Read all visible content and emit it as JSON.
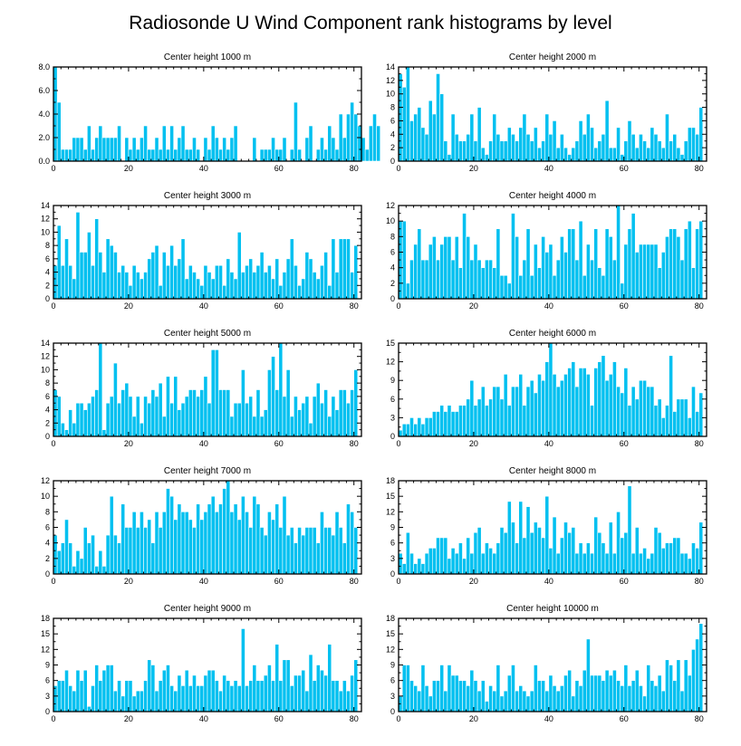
{
  "figure": {
    "title": "Radiosonde U Wind Component rank histograms by level",
    "bar_color": "#00c0f0"
  },
  "chart_data": [
    {
      "type": "bar",
      "title": "Center height 1000 m",
      "xlim": [
        0,
        82
      ],
      "ylim": [
        0,
        8
      ],
      "xticks": [
        0,
        20,
        40,
        60,
        80
      ],
      "yticks": [
        0,
        2,
        4,
        6,
        8
      ],
      "ytick_labels": [
        "0.0",
        "2.0",
        "4.0",
        "6.0",
        "8.0"
      ],
      "values": [
        8,
        5,
        1,
        1,
        1,
        2,
        2,
        2,
        1,
        3,
        1,
        2,
        3,
        2,
        2,
        2,
        2,
        3,
        0,
        2,
        1,
        2,
        1,
        2,
        3,
        1,
        1,
        2,
        1,
        3,
        1,
        3,
        1,
        2,
        3,
        1,
        1,
        2,
        1,
        0,
        2,
        1,
        3,
        2,
        1,
        2,
        1,
        2,
        3,
        0,
        0,
        0,
        0,
        2,
        0,
        1,
        1,
        1,
        2,
        1,
        1,
        2,
        0,
        1,
        5,
        1,
        0,
        2,
        3,
        0,
        1,
        2,
        1,
        3,
        2,
        1,
        4,
        2,
        4,
        5,
        4,
        3,
        2,
        1,
        3,
        4,
        3
      ]
    },
    {
      "type": "bar",
      "title": "Center height 2000 m",
      "xlim": [
        0,
        82
      ],
      "ylim": [
        0,
        14
      ],
      "xticks": [
        0,
        20,
        40,
        60,
        80
      ],
      "yticks": [
        0,
        2,
        4,
        6,
        8,
        10,
        12,
        14
      ],
      "values": [
        13,
        11,
        14,
        6,
        7,
        8,
        5,
        4,
        9,
        7,
        13,
        10,
        3,
        1,
        7,
        4,
        3,
        3,
        4,
        7,
        3,
        8,
        2,
        1,
        3,
        7,
        4,
        3,
        3,
        5,
        4,
        3,
        5,
        7,
        4,
        3,
        5,
        2,
        3,
        7,
        4,
        6,
        2,
        4,
        2,
        1,
        2,
        3,
        6,
        4,
        7,
        5,
        2,
        3,
        4,
        9,
        2,
        2,
        5,
        1,
        3,
        6,
        4,
        2,
        4,
        3,
        2,
        5,
        4,
        3,
        2,
        7,
        3,
        4,
        2,
        1,
        3,
        5,
        5,
        4,
        8
      ]
    },
    {
      "type": "bar",
      "title": "Center height 3000 m",
      "xlim": [
        0,
        82
      ],
      "ylim": [
        0,
        14
      ],
      "xticks": [
        0,
        20,
        40,
        60,
        80
      ],
      "yticks": [
        0,
        2,
        4,
        6,
        8,
        10,
        12,
        14
      ],
      "values": [
        5,
        11,
        5,
        9,
        5,
        3,
        13,
        7,
        7,
        10,
        5,
        12,
        7,
        4,
        9,
        8,
        7,
        4,
        5,
        4,
        2,
        5,
        4,
        3,
        4,
        6,
        7,
        8,
        2,
        7,
        5,
        8,
        5,
        6,
        9,
        3,
        5,
        4,
        3,
        2,
        5,
        4,
        3,
        5,
        5,
        2,
        6,
        4,
        3,
        10,
        4,
        5,
        6,
        4,
        5,
        7,
        4,
        5,
        3,
        6,
        2,
        4,
        6,
        9,
        5,
        2,
        3,
        7,
        6,
        4,
        3,
        5,
        7,
        2,
        9,
        4,
        9,
        9,
        9,
        4,
        8
      ]
    },
    {
      "type": "bar",
      "title": "Center height 4000 m",
      "xlim": [
        0,
        82
      ],
      "ylim": [
        0,
        12
      ],
      "xticks": [
        0,
        20,
        40,
        60,
        80
      ],
      "yticks": [
        0,
        2,
        4,
        6,
        8,
        10,
        12
      ],
      "values": [
        10,
        10,
        2,
        5,
        7,
        9,
        5,
        5,
        7,
        8,
        5,
        7,
        8,
        8,
        5,
        8,
        4,
        11,
        8,
        5,
        7,
        5,
        4,
        5,
        5,
        4,
        9,
        3,
        3,
        2,
        11,
        8,
        3,
        5,
        9,
        3,
        7,
        4,
        8,
        6,
        7,
        3,
        5,
        8,
        6,
        9,
        9,
        5,
        10,
        3,
        7,
        5,
        9,
        4,
        3,
        9,
        8,
        5,
        12,
        2,
        7,
        9,
        11,
        6,
        7,
        7,
        7,
        7,
        7,
        4,
        6,
        8,
        9,
        9,
        8,
        5,
        9,
        10,
        4,
        9,
        10
      ]
    },
    {
      "type": "bar",
      "title": "Center height 5000 m",
      "xlim": [
        0,
        82
      ],
      "ylim": [
        0,
        14
      ],
      "xticks": [
        0,
        20,
        40,
        60,
        80
      ],
      "yticks": [
        0,
        2,
        4,
        6,
        8,
        10,
        12,
        14
      ],
      "values": [
        7,
        6,
        2,
        1,
        4,
        2,
        5,
        5,
        4,
        5,
        6,
        7,
        14,
        1,
        5,
        6,
        11,
        5,
        7,
        8,
        6,
        3,
        6,
        2,
        6,
        5,
        7,
        6,
        8,
        3,
        9,
        5,
        9,
        4,
        5,
        6,
        7,
        7,
        6,
        7,
        9,
        5,
        13,
        13,
        7,
        7,
        7,
        3,
        5,
        5,
        10,
        5,
        6,
        3,
        7,
        3,
        4,
        10,
        12,
        7,
        14,
        6,
        10,
        3,
        6,
        4,
        5,
        6,
        2,
        6,
        8,
        5,
        7,
        3,
        6,
        4,
        7,
        7,
        5,
        7,
        10
      ]
    },
    {
      "type": "bar",
      "title": "Center height 6000 m",
      "xlim": [
        0,
        82
      ],
      "ylim": [
        0,
        15
      ],
      "xticks": [
        0,
        20,
        40,
        60,
        80
      ],
      "yticks": [
        0,
        3,
        6,
        9,
        12,
        15
      ],
      "values": [
        1,
        2,
        2,
        3,
        2,
        3,
        2,
        3,
        3,
        4,
        4,
        5,
        4,
        5,
        4,
        4,
        5,
        5,
        6,
        9,
        5,
        6,
        8,
        5,
        6,
        8,
        8,
        6,
        10,
        5,
        8,
        8,
        10,
        5,
        8,
        9,
        7,
        10,
        9,
        12,
        15,
        10,
        8,
        9,
        10,
        11,
        12,
        8,
        11,
        11,
        10,
        5,
        11,
        12,
        13,
        9,
        10,
        12,
        8,
        7,
        11,
        5,
        8,
        6,
        9,
        9,
        8,
        8,
        5,
        6,
        3,
        5,
        13,
        4,
        6,
        6,
        6,
        3,
        8,
        4,
        7
      ]
    },
    {
      "type": "bar",
      "title": "Center height 7000 m",
      "xlim": [
        0,
        82
      ],
      "ylim": [
        0,
        12
      ],
      "xticks": [
        0,
        20,
        40,
        60,
        80
      ],
      "yticks": [
        0,
        2,
        4,
        6,
        8,
        10,
        12
      ],
      "values": [
        5,
        3,
        4,
        7,
        4,
        1,
        3,
        2,
        6,
        4,
        5,
        1,
        3,
        1,
        5,
        10,
        5,
        4,
        9,
        6,
        6,
        8,
        6,
        8,
        6,
        7,
        4,
        8,
        6,
        8,
        11,
        10,
        7,
        9,
        8,
        8,
        7,
        6,
        9,
        7,
        8,
        9,
        10,
        8,
        9,
        11,
        12,
        8,
        9,
        7,
        10,
        8,
        6,
        10,
        9,
        6,
        5,
        8,
        7,
        9,
        6,
        10,
        5,
        6,
        4,
        6,
        5,
        6,
        6,
        6,
        4,
        8,
        6,
        6,
        5,
        8,
        6,
        4,
        9,
        8,
        6
      ]
    },
    {
      "type": "bar",
      "title": "Center height 8000 m",
      "xlim": [
        0,
        82
      ],
      "ylim": [
        0,
        18
      ],
      "xticks": [
        0,
        20,
        40,
        60,
        80
      ],
      "yticks": [
        0,
        3,
        6,
        9,
        12,
        15,
        18
      ],
      "values": [
        4,
        2,
        8,
        4,
        2,
        3,
        2,
        4,
        5,
        5,
        7,
        7,
        7,
        3,
        5,
        4,
        6,
        3,
        7,
        4,
        8,
        9,
        4,
        6,
        5,
        4,
        6,
        9,
        8,
        14,
        10,
        6,
        14,
        7,
        13,
        8,
        10,
        9,
        7,
        15,
        5,
        11,
        4,
        7,
        10,
        8,
        9,
        4,
        6,
        4,
        6,
        4,
        11,
        8,
        6,
        4,
        10,
        4,
        12,
        7,
        8,
        17,
        4,
        9,
        4,
        5,
        3,
        4,
        9,
        8,
        5,
        6,
        6,
        7,
        7,
        4,
        4,
        3,
        6,
        5,
        10
      ]
    },
    {
      "type": "bar",
      "title": "Center height 9000 m",
      "xlim": [
        0,
        82
      ],
      "ylim": [
        0,
        18
      ],
      "xticks": [
        0,
        20,
        40,
        60,
        80
      ],
      "yticks": [
        0,
        3,
        6,
        9,
        12,
        15,
        18
      ],
      "values": [
        5,
        6,
        6,
        8,
        5,
        4,
        8,
        6,
        8,
        1,
        5,
        9,
        6,
        8,
        9,
        9,
        4,
        6,
        3,
        6,
        6,
        3,
        4,
        4,
        6,
        10,
        9,
        4,
        6,
        8,
        9,
        5,
        4,
        7,
        5,
        8,
        5,
        7,
        5,
        5,
        7,
        8,
        8,
        6,
        4,
        7,
        6,
        5,
        6,
        5,
        16,
        5,
        6,
        9,
        6,
        6,
        7,
        9,
        6,
        13,
        6,
        10,
        10,
        5,
        7,
        7,
        8,
        4,
        11,
        6,
        9,
        8,
        7,
        13,
        6,
        6,
        4,
        6,
        4,
        7,
        10
      ]
    },
    {
      "type": "bar",
      "title": "Center height 10000 m",
      "xlim": [
        0,
        82
      ],
      "ylim": [
        0,
        18
      ],
      "xticks": [
        0,
        20,
        40,
        60,
        80
      ],
      "yticks": [
        0,
        3,
        6,
        9,
        12,
        15,
        18
      ],
      "values": [
        3,
        9,
        9,
        6,
        5,
        4,
        9,
        5,
        3,
        6,
        6,
        9,
        4,
        9,
        7,
        7,
        6,
        6,
        5,
        8,
        6,
        4,
        6,
        2,
        5,
        4,
        9,
        3,
        4,
        7,
        9,
        4,
        5,
        4,
        3,
        4,
        9,
        6,
        6,
        4,
        7,
        5,
        4,
        5,
        7,
        8,
        3,
        6,
        5,
        8,
        14,
        7,
        7,
        7,
        6,
        8,
        7,
        8,
        6,
        5,
        9,
        5,
        6,
        8,
        5,
        3,
        9,
        6,
        5,
        7,
        4,
        10,
        9,
        6,
        10,
        4,
        10,
        7,
        12,
        14,
        17
      ]
    }
  ]
}
